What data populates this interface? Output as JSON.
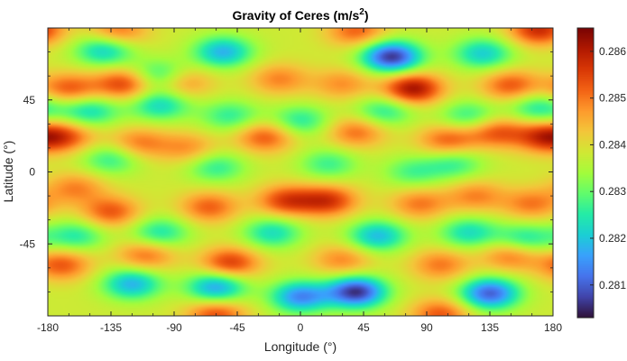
{
  "chart_data": {
    "type": "heatmap",
    "title": "Gravity of Ceres (m/s",
    "title_superscript": "2",
    "title_close": ")",
    "xlabel": "Longitude (°)",
    "ylabel": "Latitude (°)",
    "xlim": [
      -180,
      180
    ],
    "ylim": [
      -90,
      90
    ],
    "x_ticks": [
      -180,
      -135,
      -90,
      -45,
      0,
      45,
      90,
      135,
      180
    ],
    "y_ticks": [
      -45,
      0,
      45
    ],
    "colorbar": {
      "range": [
        0.2803,
        0.2865
      ],
      "ticks": [
        "0.281",
        "0.282",
        "0.283",
        "0.284",
        "0.285",
        "0.286"
      ],
      "tick_values": [
        0.281,
        0.282,
        0.283,
        0.284,
        0.285,
        0.286
      ],
      "colormap": "turbo"
    },
    "colormap_stops": [
      "#30123b",
      "#4145ab",
      "#4675ed",
      "#39a2fc",
      "#1bcfd4",
      "#24eca6",
      "#61fc6c",
      "#a4fc3b",
      "#d1e834",
      "#f3c63a",
      "#fe9b2d",
      "#f36315",
      "#d93806",
      "#b11901",
      "#7a0403"
    ],
    "features": [
      {
        "lon": -100,
        "lat": 60,
        "value": 0.2822
      },
      {
        "lon": -55,
        "lat": 75,
        "value": 0.2818
      },
      {
        "lon": -140,
        "lat": 76,
        "value": 0.2821
      },
      {
        "lon": 65,
        "lat": 72,
        "value": 0.2806
      },
      {
        "lon": 130,
        "lat": 74,
        "value": 0.2821
      },
      {
        "lon": -125,
        "lat": 55,
        "value": 0.2856
      },
      {
        "lon": -165,
        "lat": 52,
        "value": 0.2853
      },
      {
        "lon": -85,
        "lat": 56,
        "value": 0.2851
      },
      {
        "lon": -15,
        "lat": 58,
        "value": 0.2849
      },
      {
        "lon": 80,
        "lat": 52,
        "value": 0.2862
      },
      {
        "lon": 150,
        "lat": 54,
        "value": 0.2853
      },
      {
        "lon": 30,
        "lat": 55,
        "value": 0.2848
      },
      {
        "lon": -100,
        "lat": 42,
        "value": 0.2822
      },
      {
        "lon": -150,
        "lat": 38,
        "value": 0.2823
      },
      {
        "lon": -50,
        "lat": 35,
        "value": 0.2826
      },
      {
        "lon": 0,
        "lat": 32,
        "value": 0.2825
      },
      {
        "lon": 60,
        "lat": 38,
        "value": 0.2825
      },
      {
        "lon": 120,
        "lat": 35,
        "value": 0.2826
      },
      {
        "lon": 170,
        "lat": 40,
        "value": 0.2824
      },
      {
        "lon": 175,
        "lat": 22,
        "value": 0.2857
      },
      {
        "lon": 140,
        "lat": 25,
        "value": 0.2853
      },
      {
        "lon": -25,
        "lat": 22,
        "value": 0.2853
      },
      {
        "lon": 40,
        "lat": 25,
        "value": 0.2851
      },
      {
        "lon": 105,
        "lat": 20,
        "value": 0.2852
      },
      {
        "lon": -115,
        "lat": 18,
        "value": 0.285
      },
      {
        "lon": -165,
        "lat": 22,
        "value": 0.2849
      },
      {
        "lon": -80,
        "lat": 15,
        "value": 0.2848
      },
      {
        "lon": -135,
        "lat": 8,
        "value": 0.2826
      },
      {
        "lon": -60,
        "lat": 3,
        "value": 0.2826
      },
      {
        "lon": 20,
        "lat": 5,
        "value": 0.2827
      },
      {
        "lon": 110,
        "lat": 5,
        "value": 0.2827
      },
      {
        "lon": 80,
        "lat": 0,
        "value": 0.2828
      },
      {
        "lon": -10,
        "lat": -18,
        "value": 0.2855
      },
      {
        "lon": 20,
        "lat": -18,
        "value": 0.2856
      },
      {
        "lon": -65,
        "lat": -22,
        "value": 0.2852
      },
      {
        "lon": -135,
        "lat": -25,
        "value": 0.2853
      },
      {
        "lon": 85,
        "lat": -20,
        "value": 0.285
      },
      {
        "lon": 165,
        "lat": -20,
        "value": 0.285
      },
      {
        "lon": 125,
        "lat": -15,
        "value": 0.2849
      },
      {
        "lon": -160,
        "lat": -10,
        "value": 0.2849
      },
      {
        "lon": 55,
        "lat": -40,
        "value": 0.2819
      },
      {
        "lon": -20,
        "lat": -38,
        "value": 0.2823
      },
      {
        "lon": -100,
        "lat": -38,
        "value": 0.2824
      },
      {
        "lon": 120,
        "lat": -38,
        "value": 0.2823
      },
      {
        "lon": 160,
        "lat": -42,
        "value": 0.2824
      },
      {
        "lon": -160,
        "lat": -40,
        "value": 0.2825
      },
      {
        "lon": -50,
        "lat": -57,
        "value": 0.2856
      },
      {
        "lon": -170,
        "lat": -58,
        "value": 0.2853
      },
      {
        "lon": -110,
        "lat": -52,
        "value": 0.2851
      },
      {
        "lon": 30,
        "lat": -55,
        "value": 0.2849
      },
      {
        "lon": 100,
        "lat": -58,
        "value": 0.285
      },
      {
        "lon": 150,
        "lat": -52,
        "value": 0.2851
      },
      {
        "lon": 40,
        "lat": -75,
        "value": 0.2806
      },
      {
        "lon": 135,
        "lat": -76,
        "value": 0.281
      },
      {
        "lon": -60,
        "lat": -72,
        "value": 0.2816
      },
      {
        "lon": -120,
        "lat": -70,
        "value": 0.2818
      },
      {
        "lon": 0,
        "lat": -78,
        "value": 0.2814
      },
      {
        "lon": -130,
        "lat": 88,
        "value": 0.2851
      },
      {
        "lon": 40,
        "lat": 88,
        "value": 0.2852
      },
      {
        "lon": 170,
        "lat": 89,
        "value": 0.2858
      },
      {
        "lon": -60,
        "lat": -89,
        "value": 0.2854
      },
      {
        "lon": 100,
        "lat": -89,
        "value": 0.2853
      }
    ]
  }
}
